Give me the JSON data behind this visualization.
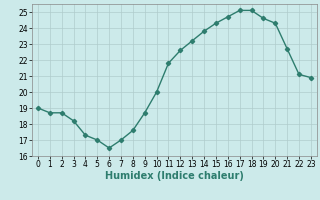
{
  "x": [
    0,
    1,
    2,
    3,
    4,
    5,
    6,
    7,
    8,
    9,
    10,
    11,
    12,
    13,
    14,
    15,
    16,
    17,
    18,
    19,
    20,
    21,
    22,
    23
  ],
  "y": [
    19.0,
    18.7,
    18.7,
    18.2,
    17.3,
    17.0,
    16.5,
    17.0,
    17.6,
    18.7,
    20.0,
    21.8,
    22.6,
    23.2,
    23.8,
    24.3,
    24.7,
    25.1,
    25.1,
    24.6,
    24.3,
    22.7,
    21.1,
    20.9
  ],
  "line_color": "#2e7d6e",
  "marker": "D",
  "marker_size": 2.2,
  "bg_color": "#cceaea",
  "grid_color": "#b0cccc",
  "xlabel": "Humidex (Indice chaleur)",
  "xlim": [
    -0.5,
    23.5
  ],
  "ylim": [
    16,
    25.5
  ],
  "yticks": [
    16,
    17,
    18,
    19,
    20,
    21,
    22,
    23,
    24,
    25
  ],
  "xticks": [
    0,
    1,
    2,
    3,
    4,
    5,
    6,
    7,
    8,
    9,
    10,
    11,
    12,
    13,
    14,
    15,
    16,
    17,
    18,
    19,
    20,
    21,
    22,
    23
  ],
  "tick_label_fontsize": 5.5,
  "xlabel_fontsize": 7.0,
  "line_width": 1.0
}
